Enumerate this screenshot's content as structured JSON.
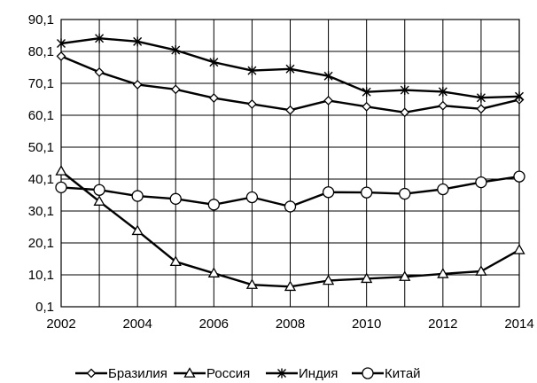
{
  "chart_data": {
    "type": "line",
    "title": "",
    "xlabel": "",
    "ylabel": "",
    "x": [
      2002,
      2003,
      2004,
      2005,
      2006,
      2007,
      2008,
      2009,
      2010,
      2011,
      2012,
      2013,
      2014
    ],
    "xlim": [
      2002,
      2014
    ],
    "ylim": [
      0.1,
      90.1
    ],
    "x_ticks": [
      "2002",
      "2004",
      "2006",
      "2008",
      "2010",
      "2012",
      "2014"
    ],
    "y_ticks": [
      "0,1",
      "10,1",
      "20,1",
      "30,1",
      "40,1",
      "50,1",
      "60,1",
      "70,1",
      "80,1",
      "90,1"
    ],
    "grid": true,
    "legend_position": "bottom",
    "series": [
      {
        "name": "Бразилия",
        "marker": "diamond",
        "values": [
          78.6,
          73.6,
          69.7,
          68.2,
          65.5,
          63.6,
          61.7,
          64.7,
          62.8,
          61.0,
          63.1,
          62.1,
          65.0
        ]
      },
      {
        "name": "Россия",
        "marker": "triangle",
        "values": [
          42.6,
          33.1,
          23.9,
          14.2,
          10.6,
          7.0,
          6.4,
          8.3,
          8.9,
          9.5,
          10.4,
          11.2,
          17.9
        ]
      },
      {
        "name": "Индия",
        "marker": "asterisk",
        "values": [
          82.6,
          84.2,
          83.2,
          80.5,
          76.7,
          74.1,
          74.6,
          72.4,
          67.4,
          68.0,
          67.5,
          65.6,
          66.0
        ]
      },
      {
        "name": "Китай",
        "marker": "circle",
        "values": [
          37.5,
          36.7,
          34.8,
          33.9,
          32.1,
          34.4,
          31.5,
          36.0,
          35.9,
          35.5,
          36.9,
          39.1,
          40.9
        ]
      }
    ]
  }
}
